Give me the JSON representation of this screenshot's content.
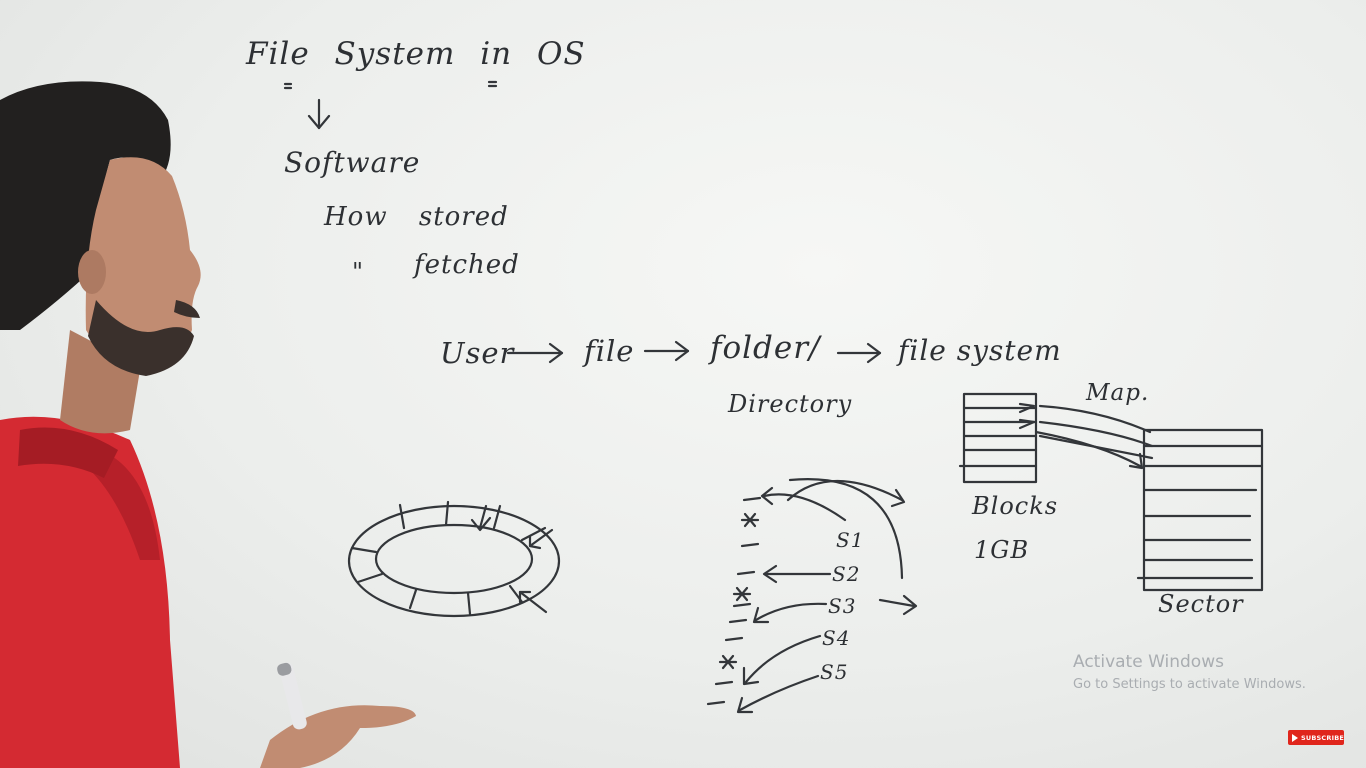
{
  "board": {
    "title": "File System in OS",
    "software": "Software",
    "how_stored": "How stored",
    "ditto_mark": "\"",
    "fetched": "fetched",
    "flow": {
      "user": "User",
      "file": "file",
      "folder": "folder/",
      "directory": "Directory",
      "file_system": "file system"
    },
    "map_label": "Map.",
    "blocks_label": "Blocks",
    "size_label": "1GB",
    "sector_label": "Sector",
    "segments": [
      "S1",
      "S2",
      "S3",
      "S4",
      "S5"
    ]
  },
  "overlay": {
    "activate_title": "Activate Windows",
    "activate_sub": "Go to Settings to activate Windows.",
    "subscribe": "SUBSCRIBE"
  },
  "colors": {
    "board": "#eceeec",
    "ink": "#33363a",
    "shirt": "#d42a32",
    "subscribe": "#e0261c"
  }
}
